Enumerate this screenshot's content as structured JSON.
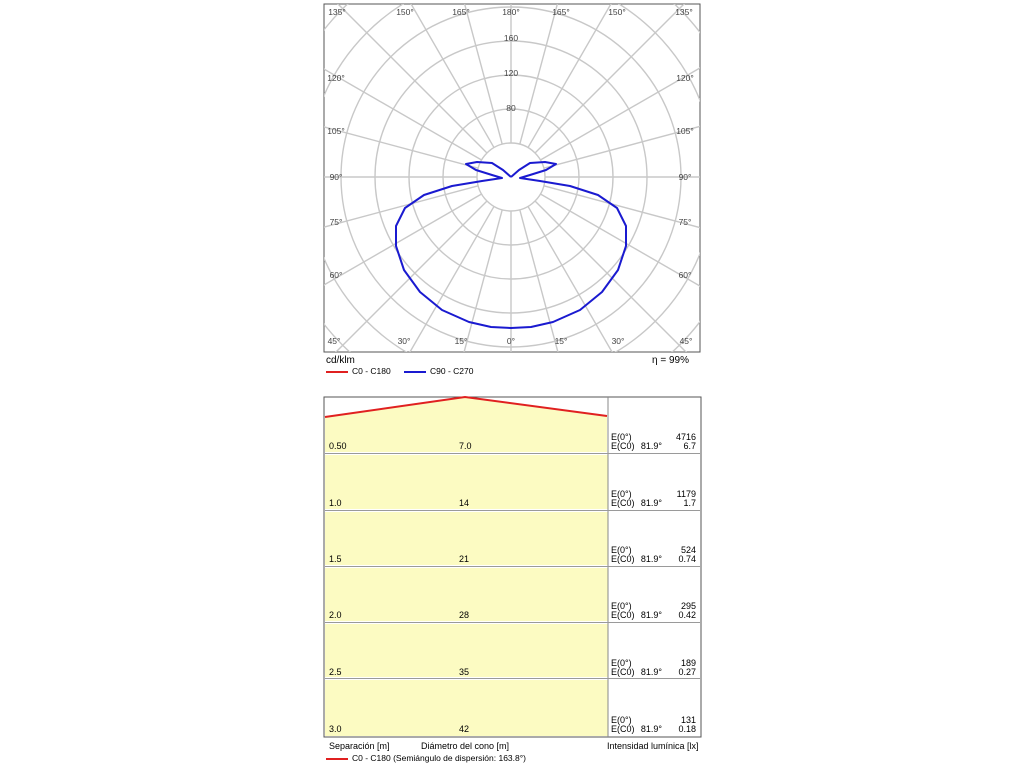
{
  "polar": {
    "unit_label": "cd/klm",
    "efficiency": "η = 99%",
    "angle_labels_top": [
      "135°",
      "150°",
      "165°",
      "180°",
      "165°",
      "150°",
      "135°"
    ],
    "angle_labels_left": [
      "120°",
      "105°",
      "90°",
      "75°",
      "60°"
    ],
    "angle_labels_right": [
      "120°",
      "105°",
      "90°",
      "75°",
      "60°"
    ],
    "angle_labels_bottom": [
      "45°",
      "30°",
      "15°",
      "0°",
      "15°",
      "30°",
      "45°"
    ],
    "radial_labels": [
      "160",
      "120",
      "80"
    ],
    "legend": [
      {
        "label": "C0 - C180",
        "color": "#e02020"
      },
      {
        "label": "C90 - C270",
        "color": "#1a1ad0"
      }
    ]
  },
  "cone": {
    "rows": [
      {
        "separation": "0.50",
        "diameter": "7.0",
        "e0_label": "E(0°)",
        "e0_value": "4716",
        "ec0_label": "E(C0)",
        "ec0_angle": "81.9°",
        "ec0_value": "6.7"
      },
      {
        "separation": "1.0",
        "diameter": "14",
        "e0_label": "E(0°)",
        "e0_value": "1179",
        "ec0_label": "E(C0)",
        "ec0_angle": "81.9°",
        "ec0_value": "1.7"
      },
      {
        "separation": "1.5",
        "diameter": "21",
        "e0_label": "E(0°)",
        "e0_value": "524",
        "ec0_label": "E(C0)",
        "ec0_angle": "81.9°",
        "ec0_value": "0.74"
      },
      {
        "separation": "2.0",
        "diameter": "28",
        "e0_label": "E(0°)",
        "e0_value": "295",
        "ec0_label": "E(C0)",
        "ec0_angle": "81.9°",
        "ec0_value": "0.42"
      },
      {
        "separation": "2.5",
        "diameter": "35",
        "e0_label": "E(0°)",
        "e0_value": "189",
        "ec0_label": "E(C0)",
        "ec0_angle": "81.9°",
        "ec0_value": "0.27"
      },
      {
        "separation": "3.0",
        "diameter": "42",
        "e0_label": "E(0°)",
        "e0_value": "131",
        "ec0_label": "E(C0)",
        "ec0_angle": "81.9°",
        "ec0_value": "0.18"
      }
    ],
    "footer": {
      "separation_label": "Separación [m]",
      "diameter_label": "Diámetro del cono [m]",
      "intensity_label": "Intensidad lumínica [lx]"
    },
    "legend": {
      "label": "C0 - C180 (Semiángulo de dispersión: 163.8°)",
      "color": "#e02020"
    }
  }
}
